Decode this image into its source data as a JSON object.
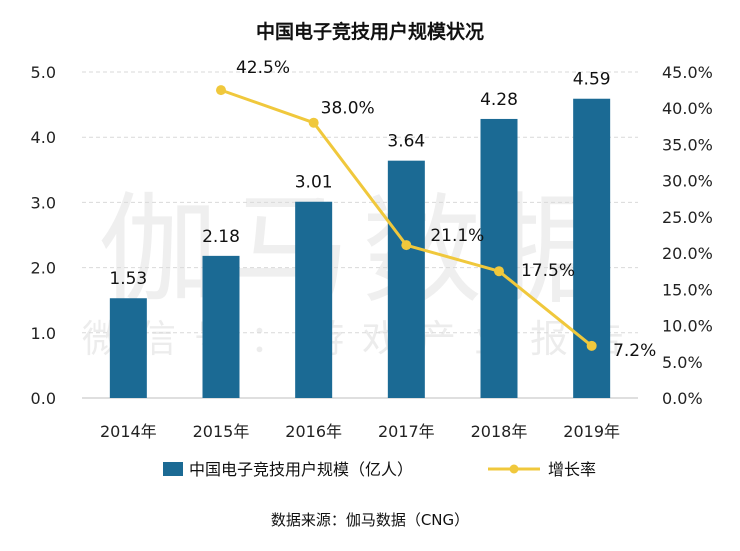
{
  "chart_data": {
    "type": "bar",
    "title": "中国电子竞技用户规模状况",
    "categories": [
      "2014年",
      "2015年",
      "2016年",
      "2017年",
      "2018年",
      "2019年"
    ],
    "series": [
      {
        "name": "中国电子竞技用户规模（亿人）",
        "type": "bar",
        "axis": "left",
        "color": "#1b6a94",
        "values": [
          1.53,
          2.18,
          3.01,
          3.64,
          4.28,
          4.59
        ],
        "labels": [
          "1.53",
          "2.18",
          "3.01",
          "3.64",
          "4.28",
          "4.59"
        ]
      },
      {
        "name": "增长率",
        "type": "line",
        "axis": "right",
        "color": "#f0c83c",
        "values": [
          null,
          42.5,
          38.0,
          21.1,
          17.5,
          7.2
        ],
        "labels": [
          "",
          "42.5%",
          "38.0%",
          "21.1%",
          "17.5%",
          "7.2%"
        ]
      }
    ],
    "ylim": [
      0,
      5
    ],
    "yticks": [
      "0.0",
      "1.0",
      "2.0",
      "3.0",
      "4.0",
      "5.0"
    ],
    "y2lim": [
      0,
      45
    ],
    "y2ticks": [
      "0.0%",
      "5.0%",
      "10.0%",
      "15.0%",
      "20.0%",
      "25.0%",
      "30.0%",
      "35.0%",
      "40.0%",
      "45.0%"
    ],
    "grid": true,
    "legend": "bottom",
    "source": "数据来源：伽马数据（CNG）"
  },
  "watermark": {
    "main": "伽马数据",
    "sub": "微信号：游戏产业报告"
  }
}
